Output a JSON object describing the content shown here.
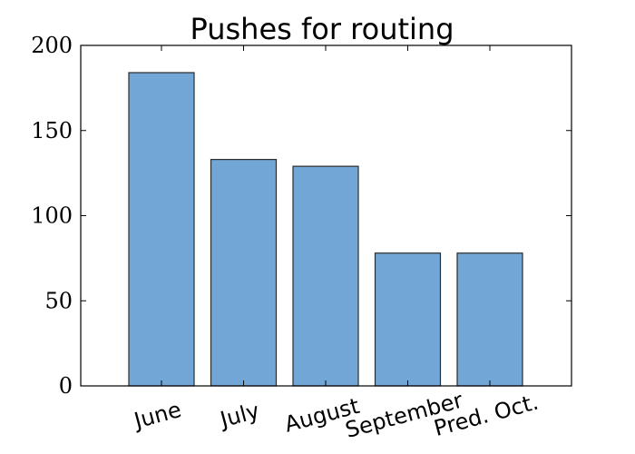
{
  "chart_data": {
    "type": "bar",
    "title": "Pushes for routing",
    "xlabel": "",
    "ylabel": "",
    "categories": [
      "June",
      "July",
      "August",
      "September",
      "Pred. Oct."
    ],
    "values": [
      184,
      133,
      129,
      78,
      78
    ],
    "ylim": [
      0,
      200
    ],
    "yticks": [
      0,
      50,
      100,
      150,
      200
    ],
    "grid": false,
    "legend": null,
    "bar_color": "#72a6d6",
    "bar_edge_color": "#2b2b2b"
  }
}
